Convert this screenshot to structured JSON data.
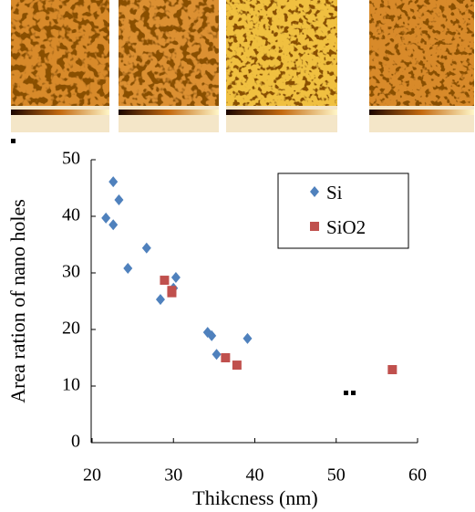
{
  "chart_data": {
    "type": "scatter",
    "xlabel": "Thikcness (nm)",
    "ylabel": "Area ration of nano holes",
    "xlim": [
      20,
      60
    ],
    "xticks": [
      20,
      30,
      40,
      50,
      60
    ],
    "ylim": [
      0,
      50
    ],
    "yticks": [
      0,
      10,
      20,
      30,
      40,
      50
    ],
    "legend": "upper right",
    "series": [
      {
        "name": "Si",
        "color": "#4f81bd",
        "marker": "diamond",
        "x": [
          21.7,
          22.6,
          22.6,
          23.3,
          24.4,
          26.7,
          28.4,
          30.0,
          30.3,
          34.2,
          34.7,
          35.3,
          39.1
        ],
        "values": [
          39.7,
          46.1,
          38.5,
          42.9,
          30.8,
          34.4,
          25.3,
          27.3,
          29.2,
          19.5,
          18.9,
          15.6,
          18.4
        ]
      },
      {
        "name": "SiO2",
        "color": "#c0504d",
        "marker": "square",
        "x": [
          28.9,
          29.8,
          29.8,
          36.4,
          37.8,
          56.9
        ],
        "values": [
          28.7,
          26.9,
          26.5,
          15.0,
          13.7,
          12.9
        ]
      }
    ]
  }
}
